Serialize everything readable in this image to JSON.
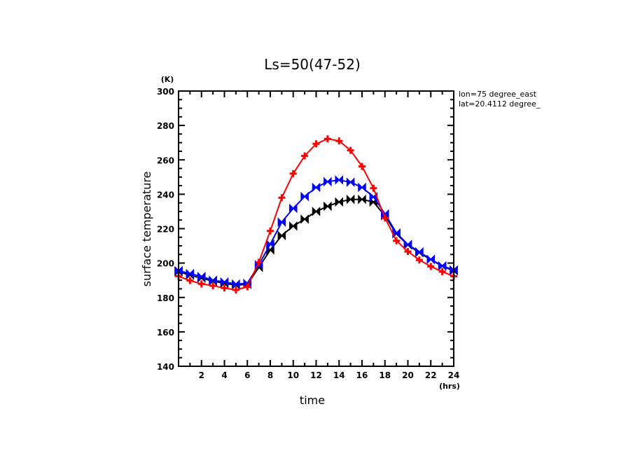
{
  "chart_data": {
    "type": "line",
    "title": "Ls=50(47-52)",
    "xlabel": "time",
    "ylabel": "surface temperature",
    "x_unit": "(hrs)",
    "y_unit": "(K)",
    "xlim": [
      0,
      24
    ],
    "ylim": [
      140,
      300
    ],
    "x_major_step": 2,
    "x_minor_step": 1,
    "y_major_step": 20,
    "y_minor_step": 5,
    "x_tick_labels": [
      "2",
      "4",
      "6",
      "8",
      "10",
      "12",
      "14",
      "16",
      "18",
      "20",
      "22",
      "24"
    ],
    "y_tick_labels": [
      "140",
      "160",
      "180",
      "200",
      "220",
      "240",
      "260",
      "280",
      "300"
    ],
    "grid": false,
    "annotations": [
      "lon=75 degree_east",
      "lat=20.4112 degree_"
    ],
    "x": [
      0,
      1,
      2,
      3,
      4,
      5,
      6,
      7,
      8,
      9,
      10,
      11,
      12,
      13,
      14,
      15,
      16,
      17,
      18,
      19,
      20,
      21,
      22,
      23,
      24
    ],
    "series": [
      {
        "name": "black",
        "color": "#000000",
        "marker": "bowtie",
        "values": [
          195.0,
          193.0,
          191.2,
          189.5,
          188.2,
          187.2,
          187.6,
          197.5,
          207.6,
          216.0,
          221.5,
          225.5,
          230.0,
          233.0,
          235.5,
          237.0,
          237.0,
          235.5,
          227.5,
          217.0,
          210.5,
          206.0,
          202.0,
          198.2,
          195.5
        ]
      },
      {
        "name": "blue",
        "color": "#0000ff",
        "marker": "bowtie",
        "values": [
          195.6,
          193.9,
          192.2,
          190.0,
          189.0,
          187.8,
          188.2,
          199.0,
          211.0,
          223.8,
          231.8,
          238.7,
          244.0,
          247.3,
          248.3,
          247.0,
          244.0,
          238.5,
          228.6,
          217.5,
          210.8,
          206.5,
          202.2,
          198.4,
          196.0
        ]
      },
      {
        "name": "red",
        "color": "#ff0000",
        "marker": "plus",
        "values": [
          192.3,
          189.8,
          187.9,
          186.8,
          185.5,
          184.4,
          186.2,
          200.5,
          218.7,
          238.0,
          252.0,
          262.3,
          269.3,
          272.2,
          271.0,
          265.5,
          256.2,
          243.5,
          226.2,
          213.0,
          206.7,
          201.8,
          198.0,
          195.0,
          192.3
        ]
      }
    ]
  }
}
